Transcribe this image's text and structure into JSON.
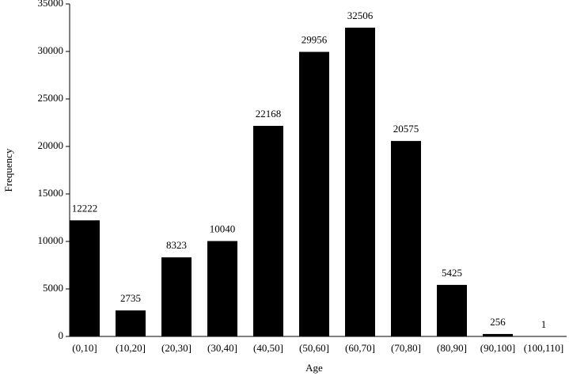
{
  "chart_data": {
    "type": "bar",
    "xlabel": "Age",
    "ylabel": "Frequency",
    "categories": [
      "(0,10]",
      "(10,20]",
      "(20,30]",
      "(30,40]",
      "(40,50]",
      "(50,60]",
      "(60,70]",
      "(70,80]",
      "(80,90]",
      "(90,100]",
      "(100,110]"
    ],
    "values": [
      12222,
      2735,
      8323,
      10040,
      22168,
      29956,
      32506,
      20575,
      5425,
      256,
      1
    ],
    "color": "#000000",
    "ylim": [
      0,
      35000
    ],
    "yticks": [
      0,
      5000,
      10000,
      15000,
      20000,
      25000,
      30000,
      35000
    ],
    "grid": false
  }
}
